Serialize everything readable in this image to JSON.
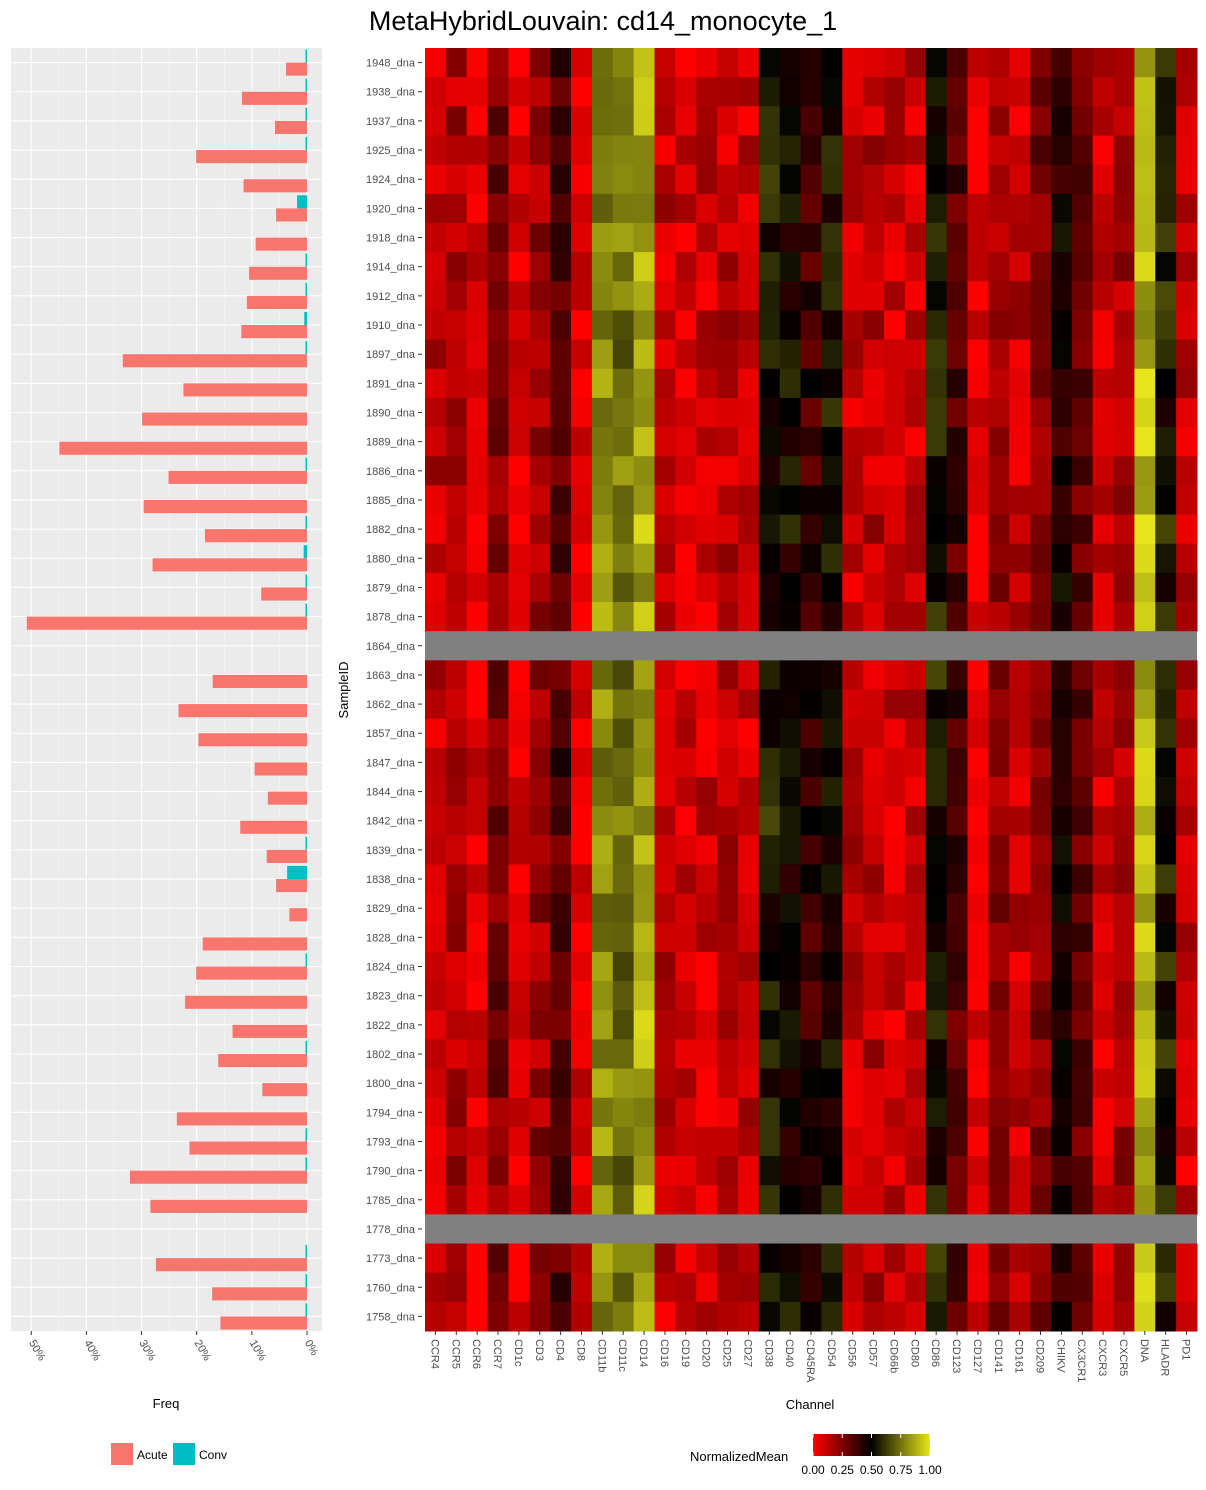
{
  "title": "MetaHybridLouvain: cd14_monocyte_1",
  "chart_data": [
    {
      "type": "bar",
      "orientation": "horizontal",
      "xlabel": "Freq",
      "x_reversed": true,
      "xlim": [
        0,
        0.52
      ],
      "x_ticks": [
        0,
        0.1,
        0.2,
        0.3,
        0.4,
        0.5
      ],
      "x_tick_labels": [
        "0%",
        "10%",
        "20%",
        "30%",
        "40%",
        "50%"
      ],
      "legend": {
        "position": "bottom",
        "entries": [
          "Acute",
          "Conv"
        ]
      },
      "colors": {
        "Acute": "#F8766D",
        "Conv": "#00BFC4",
        "panel_bg": "#EBEBEB",
        "grid": "#FFFFFF"
      },
      "rows": [
        {
          "sample": "1948_dna",
          "Acute": 0.038,
          "Conv": 0.0025
        },
        {
          "sample": "1938_dna",
          "Acute": 0.118,
          "Conv": 0.0025
        },
        {
          "sample": "1937_dna",
          "Acute": 0.058,
          "Conv": 0.0025
        },
        {
          "sample": "1925_dna",
          "Acute": 0.201,
          "Conv": 0.0025
        },
        {
          "sample": "1924_dna",
          "Acute": 0.115,
          "Conv": 0.0
        },
        {
          "sample": "1920_dna",
          "Acute": 0.056,
          "Conv": 0.018
        },
        {
          "sample": "1918_dna",
          "Acute": 0.093,
          "Conv": 0.0
        },
        {
          "sample": "1914_dna",
          "Acute": 0.105,
          "Conv": 0.0025
        },
        {
          "sample": "1912_dna",
          "Acute": 0.109,
          "Conv": 0.0025
        },
        {
          "sample": "1910_dna",
          "Acute": 0.119,
          "Conv": 0.005
        },
        {
          "sample": "1897_dna",
          "Acute": 0.334,
          "Conv": 0.0025
        },
        {
          "sample": "1891_dna",
          "Acute": 0.224,
          "Conv": 0.0
        },
        {
          "sample": "1890_dna",
          "Acute": 0.299,
          "Conv": 0.0
        },
        {
          "sample": "1889_dna",
          "Acute": 0.449,
          "Conv": 0.0
        },
        {
          "sample": "1886_dna",
          "Acute": 0.251,
          "Conv": 0.0025
        },
        {
          "sample": "1885_dna",
          "Acute": 0.296,
          "Conv": 0.0
        },
        {
          "sample": "1882_dna",
          "Acute": 0.185,
          "Conv": 0.0025
        },
        {
          "sample": "1880_dna",
          "Acute": 0.28,
          "Conv": 0.006
        },
        {
          "sample": "1879_dna",
          "Acute": 0.083,
          "Conv": 0.0025
        },
        {
          "sample": "1878_dna",
          "Acute": 0.508,
          "Conv": 0.0025
        },
        {
          "sample": "1864_dna",
          "Acute": 0.0,
          "Conv": 0.0
        },
        {
          "sample": "1863_dna",
          "Acute": 0.171,
          "Conv": 0.0
        },
        {
          "sample": "1862_dna",
          "Acute": 0.233,
          "Conv": 0.0
        },
        {
          "sample": "1857_dna",
          "Acute": 0.197,
          "Conv": 0.0
        },
        {
          "sample": "1847_dna",
          "Acute": 0.095,
          "Conv": 0.0
        },
        {
          "sample": "1844_dna",
          "Acute": 0.071,
          "Conv": 0.0
        },
        {
          "sample": "1842_dna",
          "Acute": 0.121,
          "Conv": 0.0
        },
        {
          "sample": "1839_dna",
          "Acute": 0.073,
          "Conv": 0.0025
        },
        {
          "sample": "1838_dna",
          "Acute": 0.056,
          "Conv": 0.036
        },
        {
          "sample": "1829_dna",
          "Acute": 0.032,
          "Conv": 0.0
        },
        {
          "sample": "1828_dna",
          "Acute": 0.189,
          "Conv": 0.0
        },
        {
          "sample": "1824_dna",
          "Acute": 0.201,
          "Conv": 0.0025
        },
        {
          "sample": "1823_dna",
          "Acute": 0.221,
          "Conv": 0.0
        },
        {
          "sample": "1822_dna",
          "Acute": 0.135,
          "Conv": 0.0
        },
        {
          "sample": "1802_dna",
          "Acute": 0.161,
          "Conv": 0.0025
        },
        {
          "sample": "1800_dna",
          "Acute": 0.081,
          "Conv": 0.0
        },
        {
          "sample": "1794_dna",
          "Acute": 0.236,
          "Conv": 0.0
        },
        {
          "sample": "1793_dna",
          "Acute": 0.213,
          "Conv": 0.0025
        },
        {
          "sample": "1790_dna",
          "Acute": 0.321,
          "Conv": 0.0025
        },
        {
          "sample": "1785_dna",
          "Acute": 0.284,
          "Conv": 0.0
        },
        {
          "sample": "1778_dna",
          "Acute": 0.0,
          "Conv": 0.0
        },
        {
          "sample": "1773_dna",
          "Acute": 0.274,
          "Conv": 0.0025
        },
        {
          "sample": "1760_dna",
          "Acute": 0.172,
          "Conv": 0.0025
        },
        {
          "sample": "1758_dna",
          "Acute": 0.157,
          "Conv": 0.0025
        }
      ]
    },
    {
      "type": "heatmap",
      "xlabel": "Channel",
      "ylabel": "SampleID",
      "legend": {
        "position": "bottom",
        "title": "NormalizedMean",
        "ticks": [
          "0.00",
          "0.25",
          "0.50",
          "0.75",
          "1.00"
        ]
      },
      "colorscale": [
        "#FF0000",
        "#000000",
        "#E6E61A"
      ],
      "na_color": "#808080",
      "channels": [
        "CCR4",
        "CCR5",
        "CCR6",
        "CCR7",
        "CD1c",
        "CD3",
        "CD4",
        "CD8",
        "CD11b",
        "CD11c",
        "CD14",
        "CD16",
        "CD19",
        "CD20",
        "CD25",
        "CD27",
        "CD38",
        "CD40",
        "CD45RA",
        "CD54",
        "CD56",
        "CD57",
        "CD66b",
        "CD80",
        "CD86",
        "CD123",
        "CD127",
        "CD141",
        "CD161",
        "CD209",
        "CHIKV",
        "CX3CR1",
        "CXCR3",
        "CXCR5",
        "DNA",
        "HLADR",
        "PD1"
      ],
      "samples": [
        "1948_dna",
        "1938_dna",
        "1937_dna",
        "1925_dna",
        "1924_dna",
        "1920_dna",
        "1918_dna",
        "1914_dna",
        "1912_dna",
        "1910_dna",
        "1897_dna",
        "1891_dna",
        "1890_dna",
        "1889_dna",
        "1886_dna",
        "1885_dna",
        "1882_dna",
        "1880_dna",
        "1879_dna",
        "1878_dna",
        "1864_dna",
        "1863_dna",
        "1862_dna",
        "1857_dna",
        "1847_dna",
        "1844_dna",
        "1842_dna",
        "1839_dna",
        "1838_dna",
        "1829_dna",
        "1828_dna",
        "1824_dna",
        "1823_dna",
        "1822_dna",
        "1802_dna",
        "1800_dna",
        "1794_dna",
        "1793_dna",
        "1790_dna",
        "1785_dna",
        "1778_dna",
        "1773_dna",
        "1760_dna",
        "1758_dna"
      ],
      "missing_samples": [
        "1864_dna",
        "1778_dna"
      ],
      "channel_typical_values": [
        0.13,
        0.16,
        0.06,
        0.25,
        0.05,
        0.2,
        0.35,
        0.05,
        0.8,
        0.75,
        0.87,
        0.12,
        0.08,
        0.1,
        0.12,
        0.1,
        0.55,
        0.5,
        0.4,
        0.52,
        0.12,
        0.13,
        0.1,
        0.1,
        0.55,
        0.35,
        0.03,
        0.2,
        0.12,
        0.25,
        0.45,
        0.32,
        0.1,
        0.18,
        0.9,
        0.55,
        0.1
      ]
    }
  ]
}
